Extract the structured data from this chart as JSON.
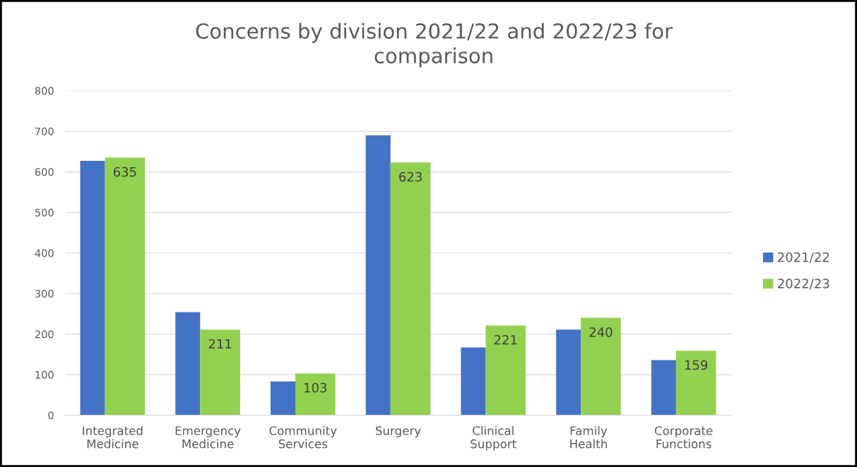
{
  "chart_data": {
    "type": "bar",
    "title": "Concerns by division 2021/22 and 2022/23 for comparison",
    "categories": [
      "Integrated Medicine",
      "Emergency Medicine",
      "Community Services",
      "Surgery",
      "Clinical Support",
      "Family Health",
      "Corporate Functions"
    ],
    "series": [
      {
        "name": "2021/22",
        "color": "#4472c4",
        "values": [
          627,
          254,
          83,
          690,
          167,
          211,
          136
        ]
      },
      {
        "name": "2022/23",
        "color": "#92d050",
        "values": [
          635,
          211,
          103,
          623,
          221,
          240,
          159
        ],
        "value_labels": [
          "635",
          "211",
          "103",
          "623",
          "221",
          "240",
          "159"
        ]
      }
    ],
    "ylim": [
      0,
      800
    ],
    "yticks": [
      0,
      100,
      200,
      300,
      400,
      500,
      600,
      700,
      800
    ],
    "grid": "y",
    "legend": "right"
  }
}
